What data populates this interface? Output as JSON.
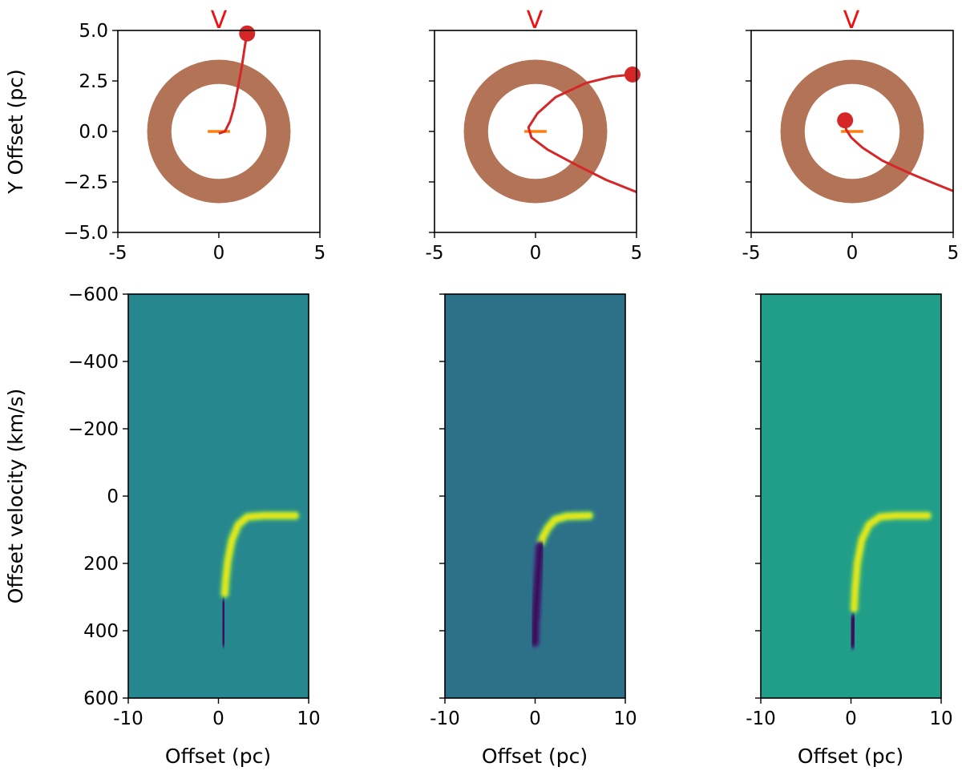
{
  "chart_data": [
    {
      "type": "scatter",
      "panel": "top-left",
      "ylabel": "Y Offset (pc)",
      "xlim": [
        -5,
        5
      ],
      "ylim": [
        -5,
        5
      ],
      "xticks": [
        "-5",
        "0",
        "5"
      ],
      "yticks": [
        "5.0",
        "2.5",
        "0.0",
        "−2.5",
        "−5.0"
      ],
      "top_marker": "V",
      "ring": {
        "inner_radius": 2.35,
        "outer_radius": 3.55,
        "color": "#b37356"
      },
      "bar": {
        "x": [
          -0.55,
          0.55
        ],
        "y": 0.0,
        "color": "#ff7f0e"
      },
      "path": [
        [
          0.0,
          -0.1
        ],
        [
          0.3,
          0.0
        ],
        [
          0.55,
          0.5
        ],
        [
          0.75,
          1.2
        ],
        [
          0.95,
          2.2
        ],
        [
          1.15,
          3.3
        ],
        [
          1.3,
          4.3
        ],
        [
          1.4,
          4.85
        ]
      ],
      "body": {
        "x": 1.4,
        "y": 4.85,
        "color": "#d62728"
      }
    },
    {
      "type": "scatter",
      "panel": "top-middle",
      "ylabel": "",
      "xlim": [
        -5,
        5
      ],
      "ylim": [
        -5,
        5
      ],
      "xticks": [
        "-5",
        "0",
        "5"
      ],
      "yticks": [],
      "top_marker": "V",
      "ring": {
        "inner_radius": 2.35,
        "outer_radius": 3.55,
        "color": "#b37356"
      },
      "bar": {
        "x": [
          -0.55,
          0.55
        ],
        "y": 0.0,
        "color": "#ff7f0e"
      },
      "path": [
        [
          5.0,
          -3.0
        ],
        [
          3.5,
          -2.4
        ],
        [
          2.0,
          -1.65
        ],
        [
          0.6,
          -0.9
        ],
        [
          -0.2,
          -0.3
        ],
        [
          -0.35,
          0.2
        ],
        [
          0.1,
          0.9
        ],
        [
          1.0,
          1.7
        ],
        [
          2.5,
          2.4
        ],
        [
          3.8,
          2.72
        ],
        [
          4.8,
          2.82
        ]
      ],
      "body": {
        "x": 4.8,
        "y": 2.82,
        "color": "#d62728"
      }
    },
    {
      "type": "scatter",
      "panel": "top-right",
      "ylabel": "",
      "xlim": [
        -5,
        5
      ],
      "ylim": [
        -5,
        5
      ],
      "xticks": [
        "-5",
        "0",
        "5"
      ],
      "yticks": [],
      "top_marker": "V",
      "ring": {
        "inner_radius": 2.35,
        "outer_radius": 3.55,
        "color": "#b37356"
      },
      "bar": {
        "x": [
          -0.55,
          0.55
        ],
        "y": 0.0,
        "color": "#ff7f0e"
      },
      "path": [
        [
          -0.35,
          0.5
        ],
        [
          -0.3,
          0.1
        ],
        [
          -0.05,
          -0.3
        ],
        [
          0.5,
          -0.8
        ],
        [
          1.5,
          -1.45
        ],
        [
          2.8,
          -2.05
        ],
        [
          4.0,
          -2.55
        ],
        [
          5.0,
          -2.95
        ]
      ],
      "body": {
        "x": -0.35,
        "y": 0.55,
        "color": "#d62728"
      }
    },
    {
      "type": "heatmap",
      "panel": "bottom-left",
      "xlabel": "Offset (pc)",
      "ylabel": "Offset velocity (km/s)",
      "xlim": [
        -10,
        10
      ],
      "ylim": [
        -600,
        600
      ],
      "xticks": [
        "-10",
        "0",
        "10"
      ],
      "yticks": [
        "−600",
        "−400",
        "−200",
        "0",
        "200",
        "400",
        "600"
      ],
      "background": "#27878e",
      "bright_track": [
        [
          8.5,
          58
        ],
        [
          5.0,
          58
        ],
        [
          3.2,
          62
        ],
        [
          2.2,
          85
        ],
        [
          1.5,
          130
        ],
        [
          1.05,
          190
        ],
        [
          0.8,
          250
        ],
        [
          0.7,
          290
        ]
      ],
      "dark_track": [
        [
          0.6,
          320
        ],
        [
          0.55,
          380
        ],
        [
          0.5,
          435
        ]
      ]
    },
    {
      "type": "heatmap",
      "panel": "bottom-middle",
      "xlabel": "Offset (pc)",
      "ylabel": "",
      "xlim": [
        -10,
        10
      ],
      "ylim": [
        -600,
        600
      ],
      "xticks": [
        "-10",
        "0",
        "10"
      ],
      "yticks": [],
      "background": "#2d7189",
      "bright_track": [
        [
          6.0,
          58
        ],
        [
          3.5,
          60
        ],
        [
          2.2,
          70
        ],
        [
          1.4,
          95
        ],
        [
          0.9,
          120
        ],
        [
          0.7,
          135
        ]
      ],
      "dark_track": [
        [
          0.55,
          150
        ],
        [
          0.35,
          230
        ],
        [
          0.15,
          320
        ],
        [
          0.0,
          390
        ],
        [
          -0.05,
          435
        ]
      ]
    },
    {
      "type": "heatmap",
      "panel": "bottom-right",
      "xlabel": "Offset (pc)",
      "ylabel": "",
      "xlim": [
        -10,
        10
      ],
      "ylim": [
        -600,
        600
      ],
      "xticks": [
        "-10",
        "0",
        "10"
      ],
      "yticks": [],
      "background": "#219e8a",
      "bright_track": [
        [
          8.5,
          58
        ],
        [
          5.0,
          58
        ],
        [
          3.2,
          62
        ],
        [
          2.0,
          85
        ],
        [
          1.2,
          130
        ],
        [
          0.7,
          200
        ],
        [
          0.45,
          280
        ],
        [
          0.35,
          335
        ]
      ],
      "dark_track": [
        [
          0.3,
          365
        ],
        [
          0.2,
          400
        ],
        [
          0.1,
          440
        ]
      ]
    }
  ]
}
